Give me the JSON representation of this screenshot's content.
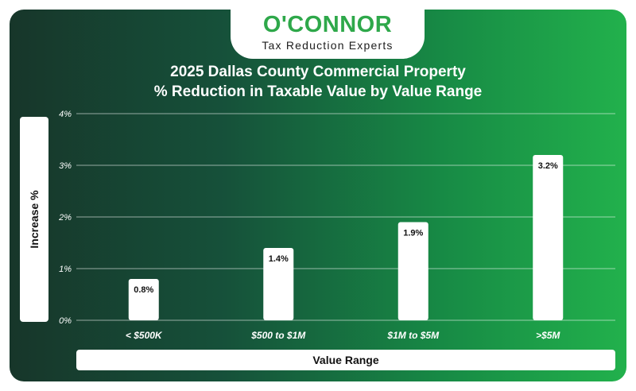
{
  "brand": {
    "name": "O'CONNOR",
    "tagline": "Tax Reduction Experts",
    "color": "#2ea84a"
  },
  "colors": {
    "gradient_left": "#17362a",
    "gradient_right": "#22b14c",
    "bar": "#ffffff"
  },
  "chart_data": {
    "type": "bar",
    "title_line1": "2025 Dallas County Commercial Property",
    "title_line2": "% Reduction in Taxable Value by Value Range",
    "xlabel": "Value Range",
    "ylabel": "Increase %",
    "categories": [
      "< $500K",
      "$500 to $1M",
      "$1M to $5M",
      ">$5M"
    ],
    "values": [
      0.8,
      1.4,
      1.9,
      3.2
    ],
    "data_labels": [
      "0.8%",
      "1.4%",
      "1.9%",
      "3.2%"
    ],
    "ylim": [
      0,
      4
    ],
    "yticks": [
      0,
      1,
      2,
      3,
      4
    ],
    "ytick_labels": [
      "0%",
      "1%",
      "2%",
      "3%",
      "4%"
    ],
    "grid": true,
    "legend": "none"
  }
}
